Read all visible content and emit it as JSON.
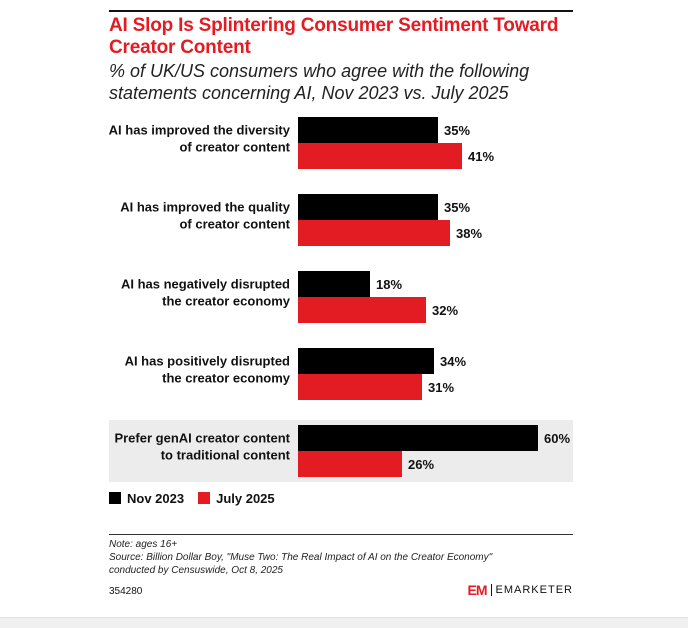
{
  "title": "AI Slop Is Splintering Consumer Sentiment Toward Creator Content",
  "subtitle": "% of UK/US consumers who agree with the following statements concerning AI, Nov 2023 vs. July 2025",
  "colors": {
    "accent": "#e31b23",
    "nov2023": "#000000",
    "july2025": "#e31b23",
    "highlight_bg": "#ececec"
  },
  "chart_data": {
    "type": "bar",
    "orientation": "horizontal",
    "categories": [
      [
        "AI has improved the diversity",
        "of creator content"
      ],
      [
        "AI has improved the quality",
        "of creator content"
      ],
      [
        "AI has negatively disrupted",
        "the creator economy"
      ],
      [
        "AI has positively disrupted",
        "the creator economy"
      ],
      [
        "Prefer genAI creator content",
        "to traditional content"
      ]
    ],
    "series": [
      {
        "name": "Nov 2023",
        "values": [
          35,
          35,
          18,
          34,
          60
        ],
        "labels": [
          "35%",
          "35%",
          "18%",
          "34%",
          "60%"
        ]
      },
      {
        "name": "July 2025",
        "values": [
          41,
          38,
          32,
          31,
          26
        ],
        "labels": [
          "41%",
          "38%",
          "32%",
          "31%",
          "26%"
        ]
      }
    ],
    "value_max": 60,
    "highlighted_category": 4,
    "legend_position": "bottom-left",
    "grid": false
  },
  "note": "Note: ages 16+",
  "source_lines": [
    "Source: Billion Dollar Boy, \"Muse Two: The Real Impact of AI on the Creator Economy\"",
    "conducted by Censuswide, Oct 8, 2025"
  ],
  "chart_id": "354280",
  "brand": {
    "mark": "EM",
    "name": "EMARKETER"
  }
}
